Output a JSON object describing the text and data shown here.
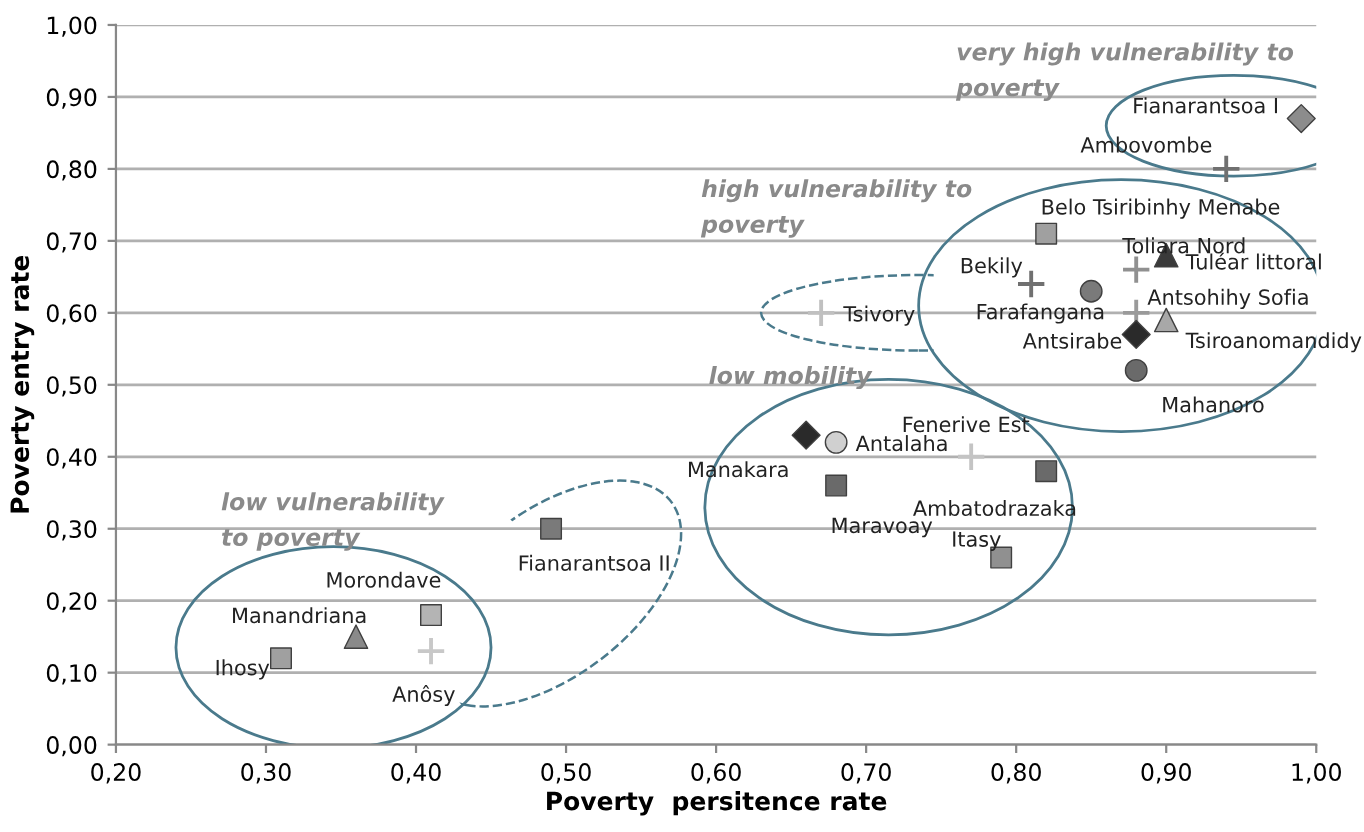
{
  "chart_data": {
    "type": "scatter",
    "xlabel": "Poverty  persitence rate",
    "ylabel": "Poverty entry rate",
    "xlim": [
      0.2,
      1.0
    ],
    "ylim": [
      0.0,
      1.0
    ],
    "xticks": [
      {
        "value": 0.2,
        "label": "0,20"
      },
      {
        "value": 0.3,
        "label": "0,30"
      },
      {
        "value": 0.4,
        "label": "0,40"
      },
      {
        "value": 0.5,
        "label": "0,50"
      },
      {
        "value": 0.6,
        "label": "0,60"
      },
      {
        "value": 0.7,
        "label": "0,70"
      },
      {
        "value": 0.8,
        "label": "0,80"
      },
      {
        "value": 0.9,
        "label": "0,90"
      },
      {
        "value": 1.0,
        "label": "1,00"
      }
    ],
    "yticks": [
      {
        "value": 0.0,
        "label": "0,00"
      },
      {
        "value": 0.1,
        "label": "0,10"
      },
      {
        "value": 0.2,
        "label": "0,20"
      },
      {
        "value": 0.3,
        "label": "0,30"
      },
      {
        "value": 0.4,
        "label": "0,40"
      },
      {
        "value": 0.5,
        "label": "0,50"
      },
      {
        "value": 0.6,
        "label": "0,60"
      },
      {
        "value": 0.7,
        "label": "0,70"
      },
      {
        "value": 0.8,
        "label": "0,80"
      },
      {
        "value": 0.9,
        "label": "0,90"
      },
      {
        "value": 1.0,
        "label": "1,00"
      }
    ],
    "grid": "y",
    "legend": false,
    "annotations": [
      "very high vulnerability to\npoverty",
      "high vulnerability to\npoverty",
      "low mobility",
      "low vulnerability\nto poverty"
    ],
    "series": [
      {
        "name": "Fianarantsoa I",
        "color": "#8c8c8c",
        "marker": "diamond",
        "x": [
          0.99
        ],
        "values": [
          0.87
        ]
      },
      {
        "name": "Ambovombe",
        "color": "#707070",
        "marker": "cross",
        "x": [
          0.94
        ],
        "values": [
          0.8
        ]
      },
      {
        "name": "Belo Tsiribinhy Menabe",
        "color": "#a0a0a0",
        "marker": "square",
        "x": [
          0.82
        ],
        "values": [
          0.71
        ]
      },
      {
        "name": "Toliara Nord",
        "color": "#909090",
        "marker": "cross",
        "x": [
          0.88
        ],
        "values": [
          0.66
        ]
      },
      {
        "name": "Tuléar littoral",
        "color": "#3a3a3a",
        "marker": "triangle",
        "x": [
          0.9
        ],
        "values": [
          0.68
        ]
      },
      {
        "name": "Bekily",
        "color": "#707070",
        "marker": "cross",
        "x": [
          0.81
        ],
        "values": [
          0.64
        ]
      },
      {
        "name": "Farafangana",
        "color": "#7a7a7a",
        "marker": "circle",
        "x": [
          0.85
        ],
        "values": [
          0.63
        ]
      },
      {
        "name": "Antsohihy Sofia",
        "color": "#9a9a9a",
        "marker": "cross",
        "x": [
          0.88
        ],
        "values": [
          0.6
        ]
      },
      {
        "name": "Tsiroanomandidy",
        "color": "#a8a8a8",
        "marker": "triangle",
        "x": [
          0.9
        ],
        "values": [
          0.59
        ]
      },
      {
        "name": "Antsirabe",
        "color": "#2a2a2a",
        "marker": "diamond",
        "x": [
          0.88
        ],
        "values": [
          0.57
        ]
      },
      {
        "name": "Mahanoro",
        "color": "#6a6a6a",
        "marker": "circle",
        "x": [
          0.88
        ],
        "values": [
          0.52
        ]
      },
      {
        "name": "Tsivory",
        "color": "#c0c0c0",
        "marker": "cross",
        "x": [
          0.67
        ],
        "values": [
          0.6
        ]
      },
      {
        "name": "Manakara",
        "color": "#2a2a2a",
        "marker": "diamond",
        "x": [
          0.66
        ],
        "values": [
          0.43
        ]
      },
      {
        "name": "Antalaha",
        "color": "#d0d0d0",
        "marker": "circle",
        "x": [
          0.68
        ],
        "values": [
          0.42
        ]
      },
      {
        "name": "Maravoay",
        "color": "#6a6a6a",
        "marker": "square",
        "x": [
          0.68
        ],
        "values": [
          0.36
        ]
      },
      {
        "name": "Fenerive Est",
        "color": "#c4c4c4",
        "marker": "cross",
        "x": [
          0.77
        ],
        "values": [
          0.4
        ]
      },
      {
        "name": "Ambatodrazaka",
        "color": "#6a6a6a",
        "marker": "square",
        "x": [
          0.82
        ],
        "values": [
          0.38
        ]
      },
      {
        "name": "Itasy",
        "color": "#909090",
        "marker": "square",
        "x": [
          0.79
        ],
        "values": [
          0.26
        ]
      },
      {
        "name": "Fianarantsoa II",
        "color": "#7a7a7a",
        "marker": "square",
        "x": [
          0.49
        ],
        "values": [
          0.3
        ]
      },
      {
        "name": "Morondave",
        "color": "#b4b4b4",
        "marker": "square",
        "x": [
          0.41
        ],
        "values": [
          0.18
        ]
      },
      {
        "name": "Manandriana",
        "color": "#8a8a8a",
        "marker": "triangle",
        "x": [
          0.36
        ],
        "values": [
          0.15
        ]
      },
      {
        "name": "Ihosy",
        "color": "#a0a0a0",
        "marker": "square",
        "x": [
          0.31
        ],
        "values": [
          0.12
        ]
      },
      {
        "name": "Anôsy",
        "color": "#c8c8c8",
        "marker": "cross",
        "x": [
          0.41
        ],
        "values": [
          0.13
        ]
      }
    ]
  }
}
